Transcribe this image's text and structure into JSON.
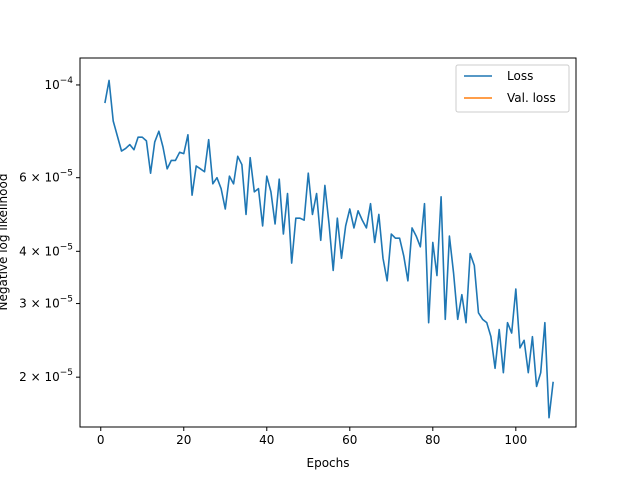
{
  "chart_data": {
    "type": "line",
    "title": "",
    "xlabel": "Epochs",
    "ylabel": "Negative log likelihood",
    "xlim": [
      -5,
      114.5
    ],
    "ylim": [
      1.52e-05,
      0.000116
    ],
    "yscale": "log",
    "grid": false,
    "legend_position": "top-right",
    "x_ticks": [
      0,
      20,
      40,
      60,
      80,
      100
    ],
    "x_tick_labels": [
      "0",
      "20",
      "40",
      "60",
      "80",
      "100"
    ],
    "y_ticks": [
      {
        "value": 0.0001,
        "mantissa": "10",
        "exponent": "−4"
      },
      {
        "value": 6e-05,
        "mantissa": "6 × 10",
        "exponent": "−5"
      },
      {
        "value": 4e-05,
        "mantissa": "4 × 10",
        "exponent": "−5"
      },
      {
        "value": 3e-05,
        "mantissa": "3 × 10",
        "exponent": "−5"
      },
      {
        "value": 2e-05,
        "mantissa": "2 × 10",
        "exponent": "−5"
      }
    ],
    "series": [
      {
        "name": "Loss",
        "color": "#1f77b4",
        "x": [
          1,
          2,
          3,
          4,
          5,
          6,
          7,
          8,
          9,
          10,
          11,
          12,
          13,
          14,
          15,
          16,
          17,
          18,
          19,
          20,
          21,
          22,
          23,
          24,
          25,
          26,
          27,
          28,
          29,
          30,
          31,
          32,
          33,
          34,
          35,
          36,
          37,
          38,
          39,
          40,
          41,
          42,
          43,
          44,
          45,
          46,
          47,
          48,
          49,
          50,
          51,
          52,
          53,
          54,
          55,
          56,
          57,
          58,
          59,
          60,
          61,
          62,
          63,
          64,
          65,
          66,
          67,
          68,
          69,
          70,
          71,
          72,
          73,
          74,
          75,
          76,
          77,
          78,
          79,
          80,
          81,
          82,
          83,
          84,
          85,
          86,
          87,
          88,
          89,
          90,
          91,
          92,
          93,
          94,
          95,
          96,
          97,
          98,
          99,
          100,
          101,
          102,
          103,
          104,
          105,
          106,
          107,
          108,
          109
        ],
        "values": [
          9.05e-05,
          0.0001025,
          8.2e-05,
          7.55e-05,
          6.95e-05,
          7.05e-05,
          7.2e-05,
          7e-05,
          7.5e-05,
          7.5e-05,
          7.35e-05,
          6.15e-05,
          7.3e-05,
          7.75e-05,
          7.1e-05,
          6.3e-05,
          6.6e-05,
          6.6e-05,
          6.9e-05,
          6.85e-05,
          7.6e-05,
          5.45e-05,
          6.4e-05,
          6.3e-05,
          6.2e-05,
          7.4e-05,
          5.8e-05,
          6e-05,
          5.65e-05,
          5.05e-05,
          6.05e-05,
          5.8e-05,
          6.75e-05,
          6.45e-05,
          4.9e-05,
          6.7e-05,
          5.55e-05,
          5.65e-05,
          4.6e-05,
          6.05e-05,
          5.55e-05,
          4.65e-05,
          5.95e-05,
          4.4e-05,
          5.5e-05,
          3.75e-05,
          4.8e-05,
          4.8e-05,
          4.75e-05,
          6.15e-05,
          4.9e-05,
          5.5e-05,
          4.25e-05,
          5.75e-05,
          4.65e-05,
          3.6e-05,
          4.8e-05,
          3.85e-05,
          4.6e-05,
          5.05e-05,
          4.55e-05,
          5e-05,
          4.75e-05,
          4.55e-05,
          5.2e-05,
          4.2e-05,
          4.9e-05,
          3.85e-05,
          3.4e-05,
          4.4e-05,
          4.3e-05,
          4.3e-05,
          3.9e-05,
          3.4e-05,
          4.55e-05,
          4.35e-05,
          4.1e-05,
          5.2e-05,
          2.7e-05,
          4.2e-05,
          3.5e-05,
          5.4e-05,
          2.75e-05,
          4.35e-05,
          3.55e-05,
          2.75e-05,
          3.15e-05,
          2.7e-05,
          3.95e-05,
          3.7e-05,
          2.85e-05,
          2.75e-05,
          2.7e-05,
          2.5e-05,
          2.1e-05,
          2.6e-05,
          2.05e-05,
          2.7e-05,
          2.55e-05,
          3.25e-05,
          2.35e-05,
          2.45e-05,
          2.05e-05,
          2.5e-05,
          1.9e-05,
          2.05e-05,
          2.7e-05,
          1.6e-05,
          1.95e-05
        ]
      },
      {
        "name": "Val. loss",
        "color": "#ff7f0e",
        "x": [],
        "values": []
      }
    ]
  }
}
